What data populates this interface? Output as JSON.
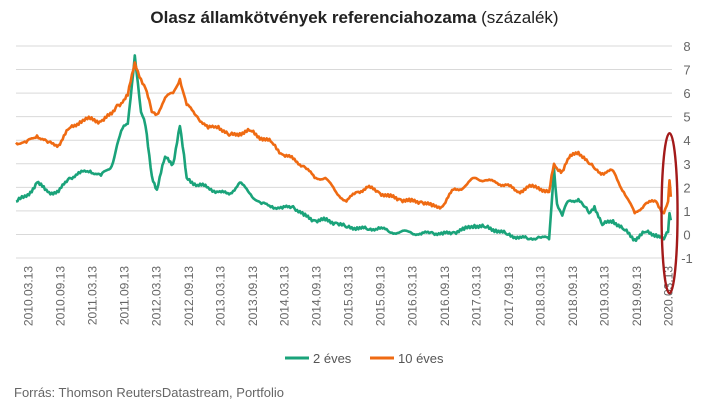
{
  "title_bold": "Olasz államkötvények referenciahozama",
  "title_suffix": " (százalék)",
  "source": "Forrás: Thomson ReutersDatastream, Portfolio",
  "colors": {
    "two_year": "#1aa37a",
    "ten_year": "#ef6a12",
    "highlight": "#a31a1a",
    "grid": "#d9d9d9",
    "axis_text": "#666666"
  },
  "chart_data": {
    "type": "line",
    "ylim": [
      -1,
      8
    ],
    "y_ticks": [
      "8",
      "7",
      "6",
      "5",
      "4",
      "3",
      "2",
      "1",
      "0",
      "-1"
    ],
    "x_ticks": [
      "2010.03.13",
      "2010.09.13",
      "2011.03.13",
      "2011.09.13",
      "2012.03.13",
      "2012.09.13",
      "2013.03.13",
      "2013.09.13",
      "2014.03.13",
      "2014.09.13",
      "2015.03.13",
      "2015.09.13",
      "2016.03.13",
      "2016.09.13",
      "2017.03.13",
      "2017.09.13",
      "2018.03.13",
      "2018.09.13",
      "2019.03.13",
      "2019.09.13",
      "2020.03.13"
    ],
    "legend_position": "bottom",
    "grid": true,
    "annotation": "ellipse around March 2020 spike",
    "series": [
      {
        "name": "2 éves",
        "x": [
          "2010.01.01",
          "2010.03.01",
          "2010.05.01",
          "2010.07.01",
          "2010.09.01",
          "2010.11.01",
          "2011.01.01",
          "2011.03.01",
          "2011.05.01",
          "2011.07.01",
          "2011.08.01",
          "2011.09.01",
          "2011.10.01",
          "2011.11.10",
          "2011.12.15",
          "2012.01.10",
          "2012.02.15",
          "2012.03.15",
          "2012.05.01",
          "2012.06.15",
          "2012.07.24",
          "2012.09.01",
          "2012.11.01",
          "2013.01.01",
          "2013.03.01",
          "2013.05.01",
          "2013.07.01",
          "2013.09.01",
          "2013.11.01",
          "2014.01.01",
          "2014.03.01",
          "2014.05.01",
          "2014.07.01",
          "2014.09.01",
          "2014.11.01",
          "2015.01.01",
          "2015.03.01",
          "2015.05.01",
          "2015.07.01",
          "2015.09.01",
          "2015.11.01",
          "2016.01.01",
          "2016.03.01",
          "2016.05.01",
          "2016.07.01",
          "2016.09.01",
          "2016.11.01",
          "2017.01.01",
          "2017.03.01",
          "2017.05.01",
          "2017.07.01",
          "2017.09.01",
          "2017.11.01",
          "2018.01.01",
          "2018.03.01",
          "2018.05.01",
          "2018.05.29",
          "2018.06.15",
          "2018.07.15",
          "2018.08.15",
          "2018.10.15",
          "2018.11.15",
          "2018.12.15",
          "2019.01.15",
          "2019.03.01",
          "2019.05.01",
          "2019.07.01",
          "2019.09.01",
          "2019.11.01",
          "2020.01.01",
          "2020.02.15",
          "2020.03.10",
          "2020.03.18",
          "2020.03.25"
        ],
        "values": [
          1.4,
          1.6,
          2.2,
          1.8,
          1.8,
          2.4,
          2.6,
          2.7,
          2.5,
          2.9,
          3.8,
          4.5,
          4.7,
          7.6,
          5.2,
          4.6,
          2.5,
          1.9,
          3.3,
          3.0,
          4.6,
          2.4,
          2.1,
          2.0,
          1.8,
          1.7,
          2.2,
          1.7,
          1.3,
          1.2,
          1.1,
          1.2,
          0.8,
          0.6,
          0.6,
          0.5,
          0.3,
          0.3,
          0.2,
          0.3,
          0.1,
          0.1,
          0.1,
          0.0,
          0.1,
          0.0,
          0.1,
          0.2,
          0.4,
          0.3,
          0.2,
          0.0,
          -0.1,
          -0.2,
          -0.1,
          -0.2,
          2.8,
          1.3,
          0.8,
          1.4,
          1.5,
          1.2,
          0.9,
          1.2,
          0.4,
          0.6,
          0.2,
          -0.2,
          0.1,
          0.0,
          -0.2,
          0.1,
          0.9,
          0.6
        ]
      },
      {
        "name": "10 éves",
        "x": [
          "2010.01.01",
          "2010.03.01",
          "2010.05.01",
          "2010.07.01",
          "2010.09.01",
          "2010.11.01",
          "2011.01.01",
          "2011.03.01",
          "2011.05.01",
          "2011.07.01",
          "2011.08.01",
          "2011.09.01",
          "2011.10.01",
          "2011.11.10",
          "2011.12.15",
          "2012.01.10",
          "2012.02.15",
          "2012.03.15",
          "2012.05.01",
          "2012.06.15",
          "2012.07.24",
          "2012.09.01",
          "2012.11.01",
          "2013.01.01",
          "2013.03.01",
          "2013.05.01",
          "2013.07.01",
          "2013.09.01",
          "2013.11.01",
          "2014.01.01",
          "2014.03.01",
          "2014.05.01",
          "2014.07.01",
          "2014.09.01",
          "2014.11.01",
          "2015.01.01",
          "2015.03.01",
          "2015.05.01",
          "2015.07.01",
          "2015.09.01",
          "2015.11.01",
          "2016.01.01",
          "2016.03.01",
          "2016.05.01",
          "2016.07.01",
          "2016.09.01",
          "2016.11.01",
          "2017.01.01",
          "2017.03.01",
          "2017.05.01",
          "2017.07.01",
          "2017.09.01",
          "2017.11.01",
          "2018.01.01",
          "2018.03.01",
          "2018.05.01",
          "2018.05.29",
          "2018.06.15",
          "2018.07.15",
          "2018.08.15",
          "2018.10.15",
          "2018.11.15",
          "2018.12.15",
          "2019.01.15",
          "2019.03.01",
          "2019.05.01",
          "2019.07.01",
          "2019.09.01",
          "2019.11.01",
          "2020.01.01",
          "2020.02.15",
          "2020.03.10",
          "2020.03.18",
          "2020.03.25"
        ],
        "values": [
          3.9,
          3.9,
          4.2,
          3.9,
          3.8,
          4.5,
          4.8,
          4.9,
          4.8,
          5.1,
          5.5,
          5.6,
          5.9,
          7.3,
          6.6,
          6.2,
          5.2,
          5.1,
          5.8,
          6.0,
          6.6,
          5.5,
          5.0,
          4.5,
          4.6,
          4.2,
          4.3,
          4.4,
          4.1,
          3.9,
          3.4,
          3.2,
          2.9,
          2.4,
          2.4,
          1.8,
          1.4,
          1.8,
          2.0,
          1.8,
          1.6,
          1.5,
          1.4,
          1.4,
          1.2,
          1.2,
          1.9,
          2.0,
          2.4,
          2.3,
          2.2,
          2.1,
          1.8,
          2.0,
          2.0,
          1.8,
          3.0,
          2.8,
          2.7,
          3.2,
          3.5,
          3.3,
          3.0,
          2.8,
          2.6,
          2.7,
          1.8,
          0.9,
          1.3,
          1.4,
          0.9,
          1.4,
          2.3,
          1.6
        ]
      }
    ]
  }
}
